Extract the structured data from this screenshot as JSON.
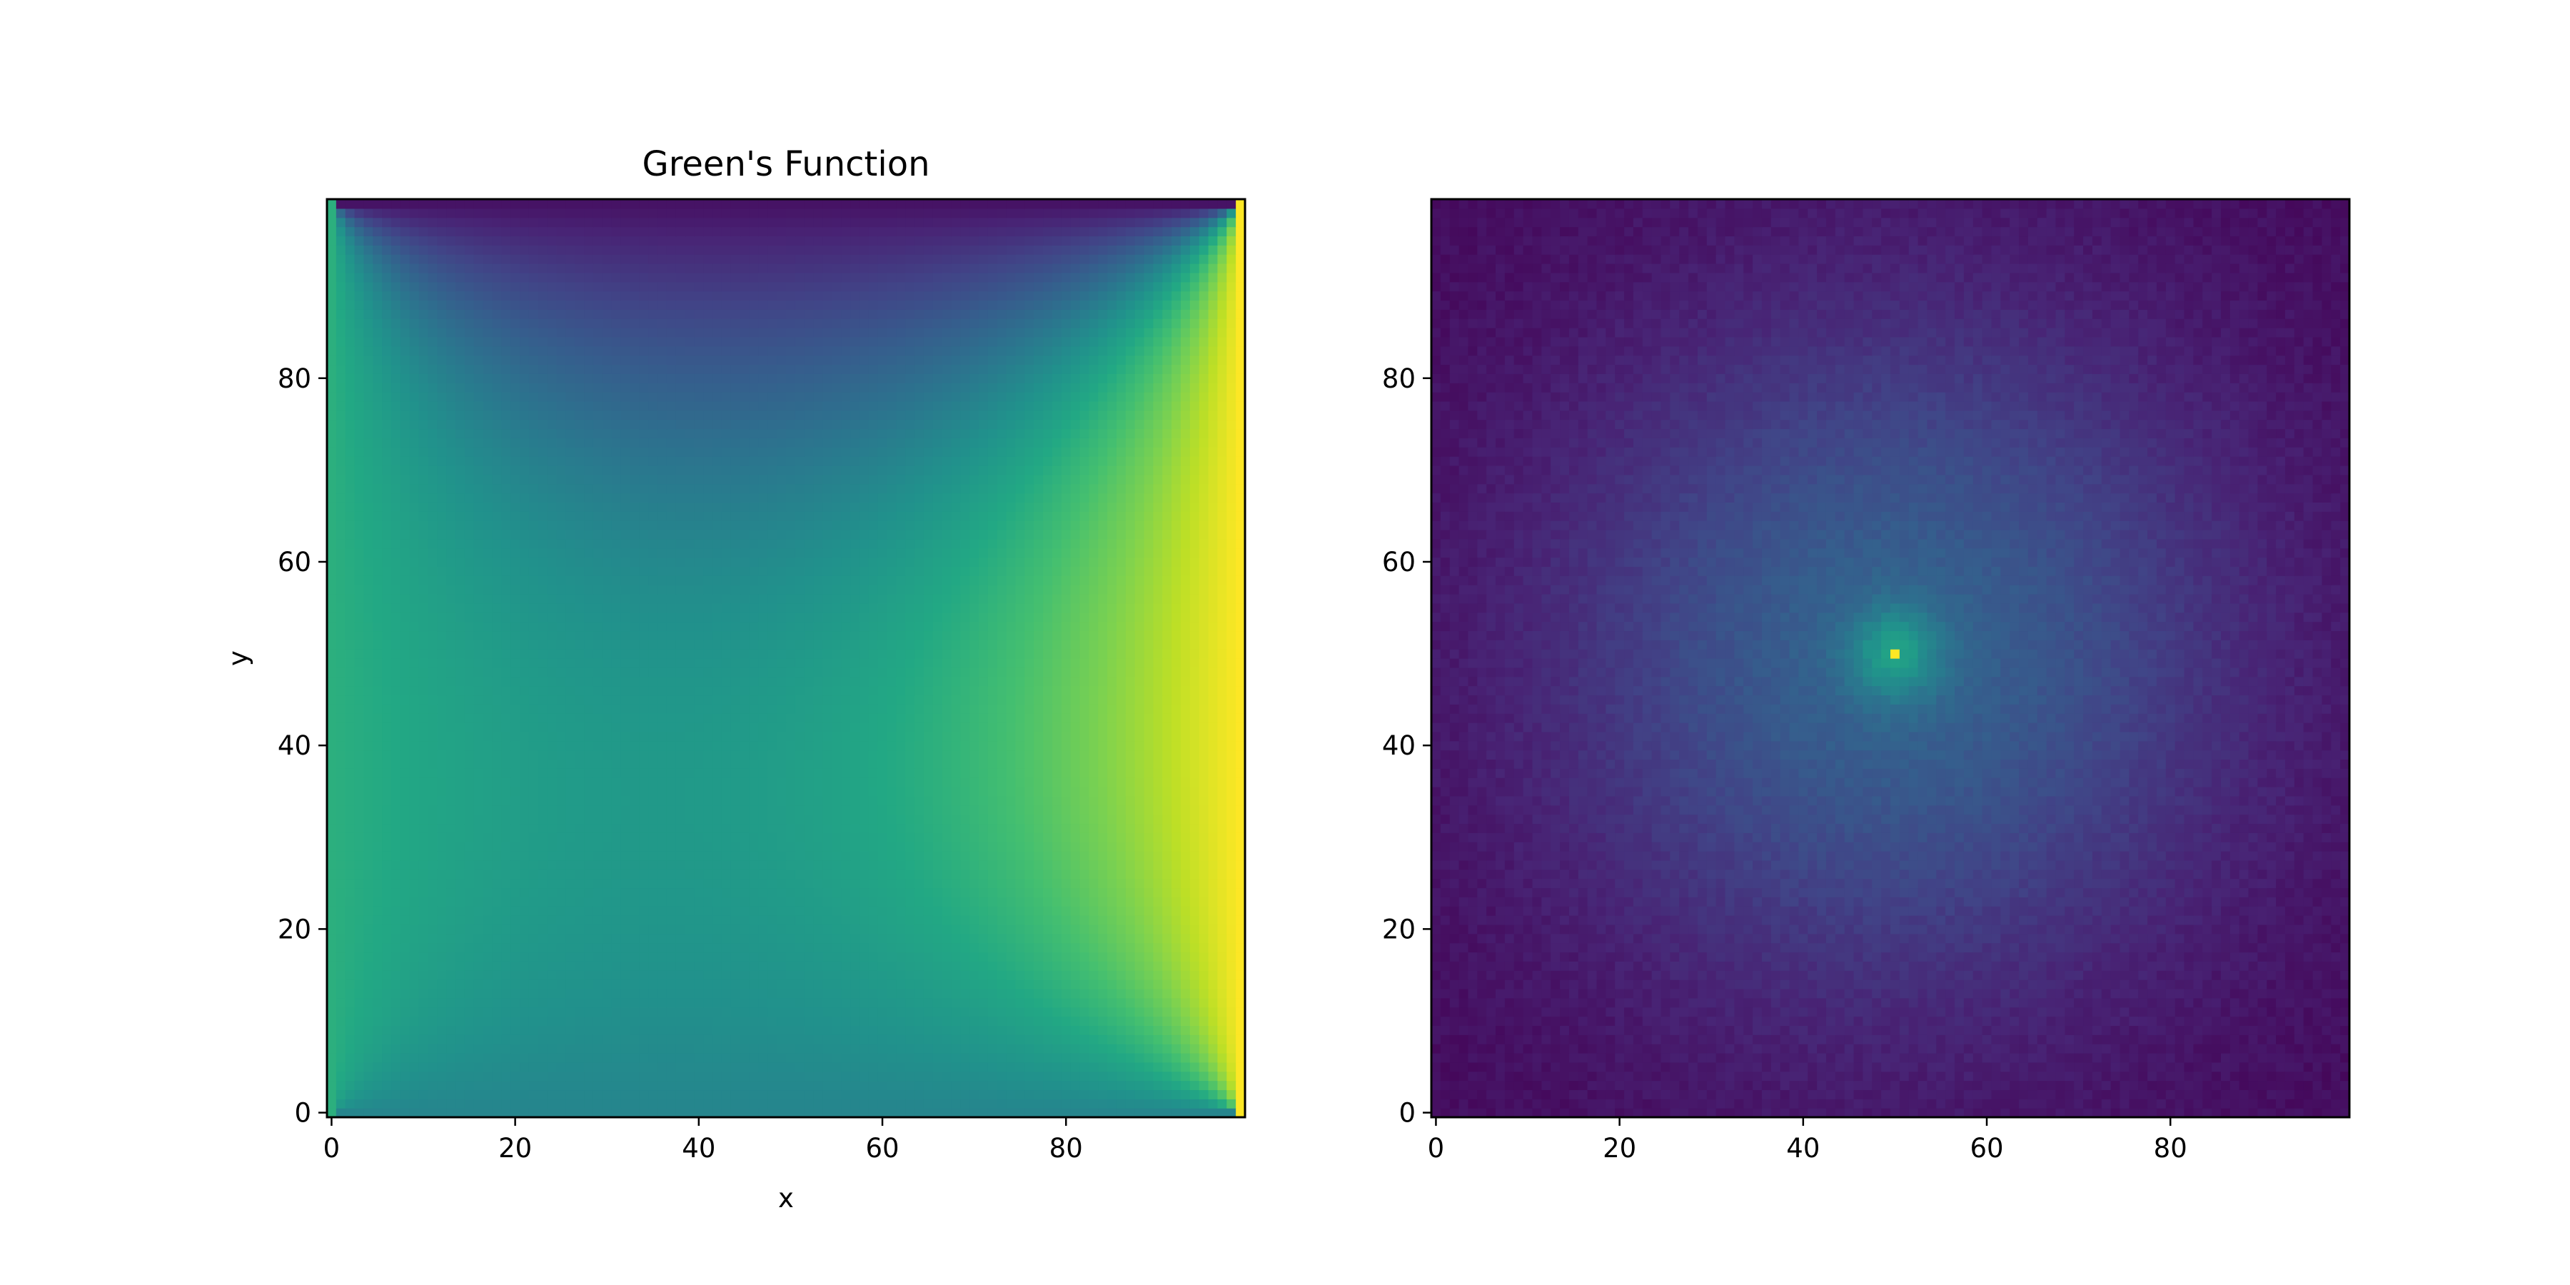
{
  "chart_data": [
    {
      "type": "heatmap",
      "title": "Green's Function",
      "xlabel": "x",
      "ylabel": "y",
      "xlim": [
        -0.5,
        99.5
      ],
      "ylim": [
        -0.5,
        99.5
      ],
      "grid_size": [
        100,
        100
      ],
      "origin": "lower",
      "colormap": "viridis",
      "grid": false,
      "xticks": [
        0,
        20,
        40,
        60,
        80
      ],
      "yticks": [
        0,
        20,
        40,
        60,
        80
      ],
      "value_range": [
        0,
        1
      ],
      "field": {
        "description_of_values": "boundary values: right edge x=99 is 1.0, left edge x=0 is about 0.63, bottom edge y=0 is about 0.45, top edge y=99 is about 0.05; interior values are harmonic interpolation of the edges",
        "left_edge": 0.63,
        "right_edge": 1.0,
        "bottom_edge": 0.45,
        "top_edge": 0.05
      }
    },
    {
      "type": "heatmap",
      "title": "",
      "xlabel": "",
      "ylabel": "",
      "xlim": [
        -0.5,
        99.5
      ],
      "ylim": [
        -0.5,
        99.5
      ],
      "grid_size": [
        100,
        100
      ],
      "origin": "lower",
      "colormap": "viridis",
      "grid": false,
      "xticks": [
        0,
        20,
        40,
        60,
        80
      ],
      "yticks": [
        0,
        20,
        40,
        60,
        80
      ],
      "value_range": [
        0,
        1
      ],
      "field": {
        "peak_location": [
          50,
          50
        ],
        "peak_value": 1.0,
        "near_peak_value": 0.55,
        "halo_value": 0.32,
        "background_value": 0.03,
        "halo_radius": 25
      }
    }
  ]
}
